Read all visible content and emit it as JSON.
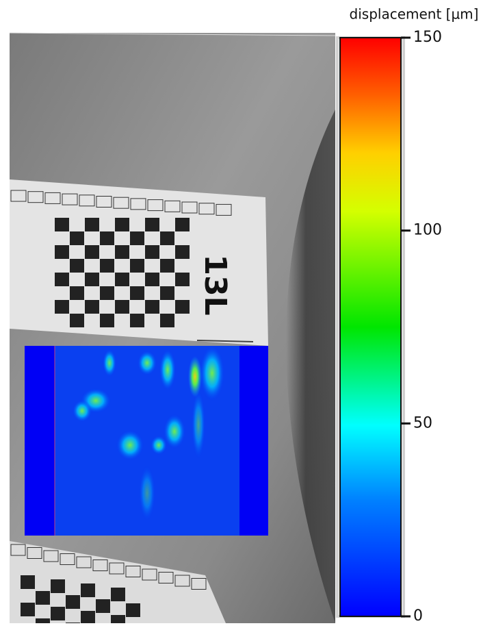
{
  "colorbar": {
    "label": "displacement [µm]",
    "lim": [
      0,
      150
    ],
    "ticks": [
      0,
      50,
      100,
      150
    ]
  },
  "photo": {
    "card_label": "13L"
  }
}
